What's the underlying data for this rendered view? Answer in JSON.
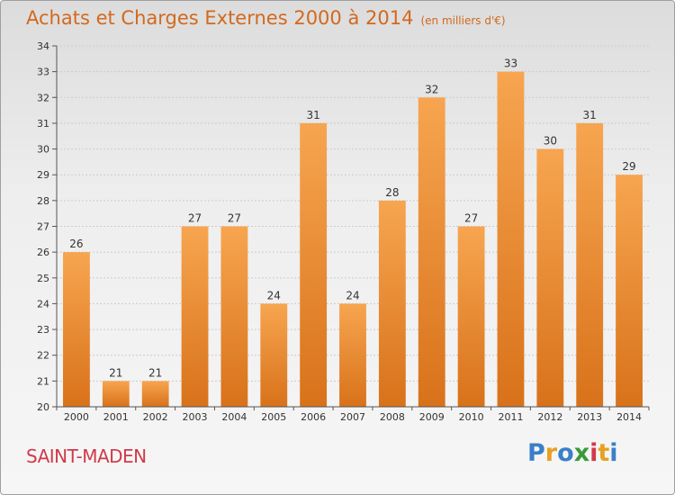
{
  "header": {
    "title": "Achats et Charges Externes 2000 à 2014",
    "subtitle": "(en milliers d'€)"
  },
  "footer": {
    "city": "SAINT-MADEN",
    "logo_letters": [
      "P",
      "r",
      "o",
      "x",
      "i",
      "t",
      "i"
    ],
    "logo_colors": [
      "#3a7fc8",
      "#e8a020",
      "#3a7fc8",
      "#3a9a3a",
      "#d03a4a",
      "#e8a020",
      "#3a7fc8"
    ]
  },
  "colors": {
    "bar_light": "#f7a550",
    "bar_dark": "#d8721a",
    "title": "#d2691e",
    "city": "#d03a4a"
  },
  "chart_data": {
    "type": "bar",
    "title": "Achats et Charges Externes 2000 à 2014",
    "subtitle": "(en milliers d'€)",
    "categories": [
      "2000",
      "2001",
      "2002",
      "2003",
      "2004",
      "2005",
      "2006",
      "2007",
      "2008",
      "2009",
      "2010",
      "2011",
      "2012",
      "2013",
      "2014"
    ],
    "values": [
      26,
      21,
      21,
      27,
      27,
      24,
      31,
      24,
      28,
      32,
      27,
      33,
      30,
      31,
      29
    ],
    "ylim": [
      20,
      34
    ],
    "yticks": [
      20,
      21,
      22,
      23,
      24,
      25,
      26,
      27,
      28,
      29,
      30,
      31,
      32,
      33,
      34
    ],
    "grid": true,
    "data_labels": true
  }
}
